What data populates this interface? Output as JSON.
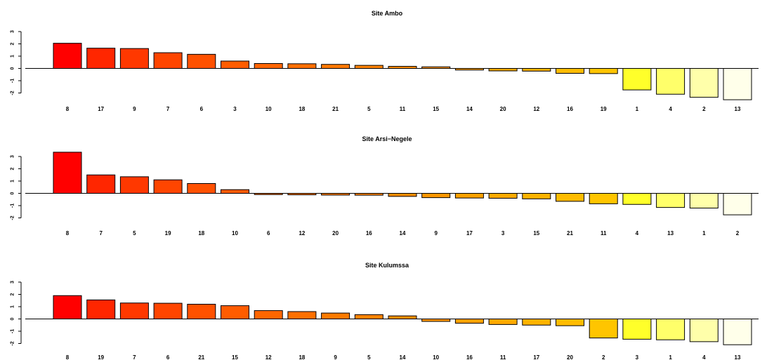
{
  "chart_data": [
    {
      "type": "bar",
      "title": "Site Ambo",
      "categories": [
        "8",
        "17",
        "9",
        "7",
        "6",
        "3",
        "10",
        "18",
        "21",
        "5",
        "11",
        "15",
        "14",
        "20",
        "12",
        "16",
        "19",
        "1",
        "4",
        "2",
        "13"
      ],
      "values": [
        2.05,
        1.65,
        1.62,
        1.28,
        1.15,
        0.6,
        0.4,
        0.38,
        0.33,
        0.25,
        0.17,
        0.13,
        -0.13,
        -0.2,
        -0.22,
        -0.4,
        -0.42,
        -1.75,
        -2.1,
        -2.35,
        -2.55
      ],
      "ylim": [
        -2.5,
        3
      ],
      "yticks": [
        "-2",
        "-1",
        "0",
        "1",
        "2",
        "3"
      ],
      "xlabel": "",
      "ylabel": "",
      "grid": false
    },
    {
      "type": "bar",
      "title": "Site Arsi−Negele",
      "categories": [
        "8",
        "7",
        "5",
        "19",
        "18",
        "10",
        "6",
        "12",
        "20",
        "16",
        "14",
        "9",
        "17",
        "3",
        "15",
        "21",
        "11",
        "4",
        "13",
        "1",
        "2"
      ],
      "values": [
        3.35,
        1.5,
        1.35,
        1.1,
        0.8,
        0.3,
        -0.1,
        -0.12,
        -0.14,
        -0.15,
        -0.25,
        -0.35,
        -0.38,
        -0.4,
        -0.45,
        -0.65,
        -0.85,
        -0.9,
        -1.15,
        -1.2,
        -1.75
      ],
      "ylim": [
        -2,
        3
      ],
      "yticks": [
        "-2",
        "-1",
        "0",
        "1",
        "2",
        "3"
      ],
      "xlabel": "",
      "ylabel": "",
      "grid": false
    },
    {
      "type": "bar",
      "title": "Site Kulumssa",
      "categories": [
        "8",
        "19",
        "7",
        "6",
        "21",
        "15",
        "12",
        "18",
        "9",
        "5",
        "14",
        "10",
        "16",
        "11",
        "17",
        "20",
        "2",
        "3",
        "1",
        "4",
        "13"
      ],
      "values": [
        1.9,
        1.55,
        1.3,
        1.28,
        1.2,
        1.08,
        0.68,
        0.6,
        0.48,
        0.35,
        0.25,
        -0.2,
        -0.35,
        -0.45,
        -0.5,
        -0.55,
        -1.55,
        -1.65,
        -1.7,
        -1.85,
        -2.1
      ],
      "ylim": [
        -2,
        3
      ],
      "yticks": [
        "-2",
        "-1",
        "0",
        "1",
        "2",
        "3"
      ],
      "xlabel": "",
      "ylabel": "",
      "grid": false
    }
  ],
  "colors": {
    "gradient": [
      "#ff0000",
      "#ff2600",
      "#ff3800",
      "#ff4500",
      "#ff5100",
      "#ff5c00",
      "#ff6600",
      "#ff7000",
      "#ff7a00",
      "#ff8400",
      "#ff8e00",
      "#ff9700",
      "#ffa100",
      "#ffaa00",
      "#ffb300",
      "#ffbc00",
      "#ffc500",
      "#ffff2a",
      "#ffff6a",
      "#ffffaa",
      "#ffffea"
    ],
    "stroke": "#000000",
    "axis": "#000000"
  }
}
